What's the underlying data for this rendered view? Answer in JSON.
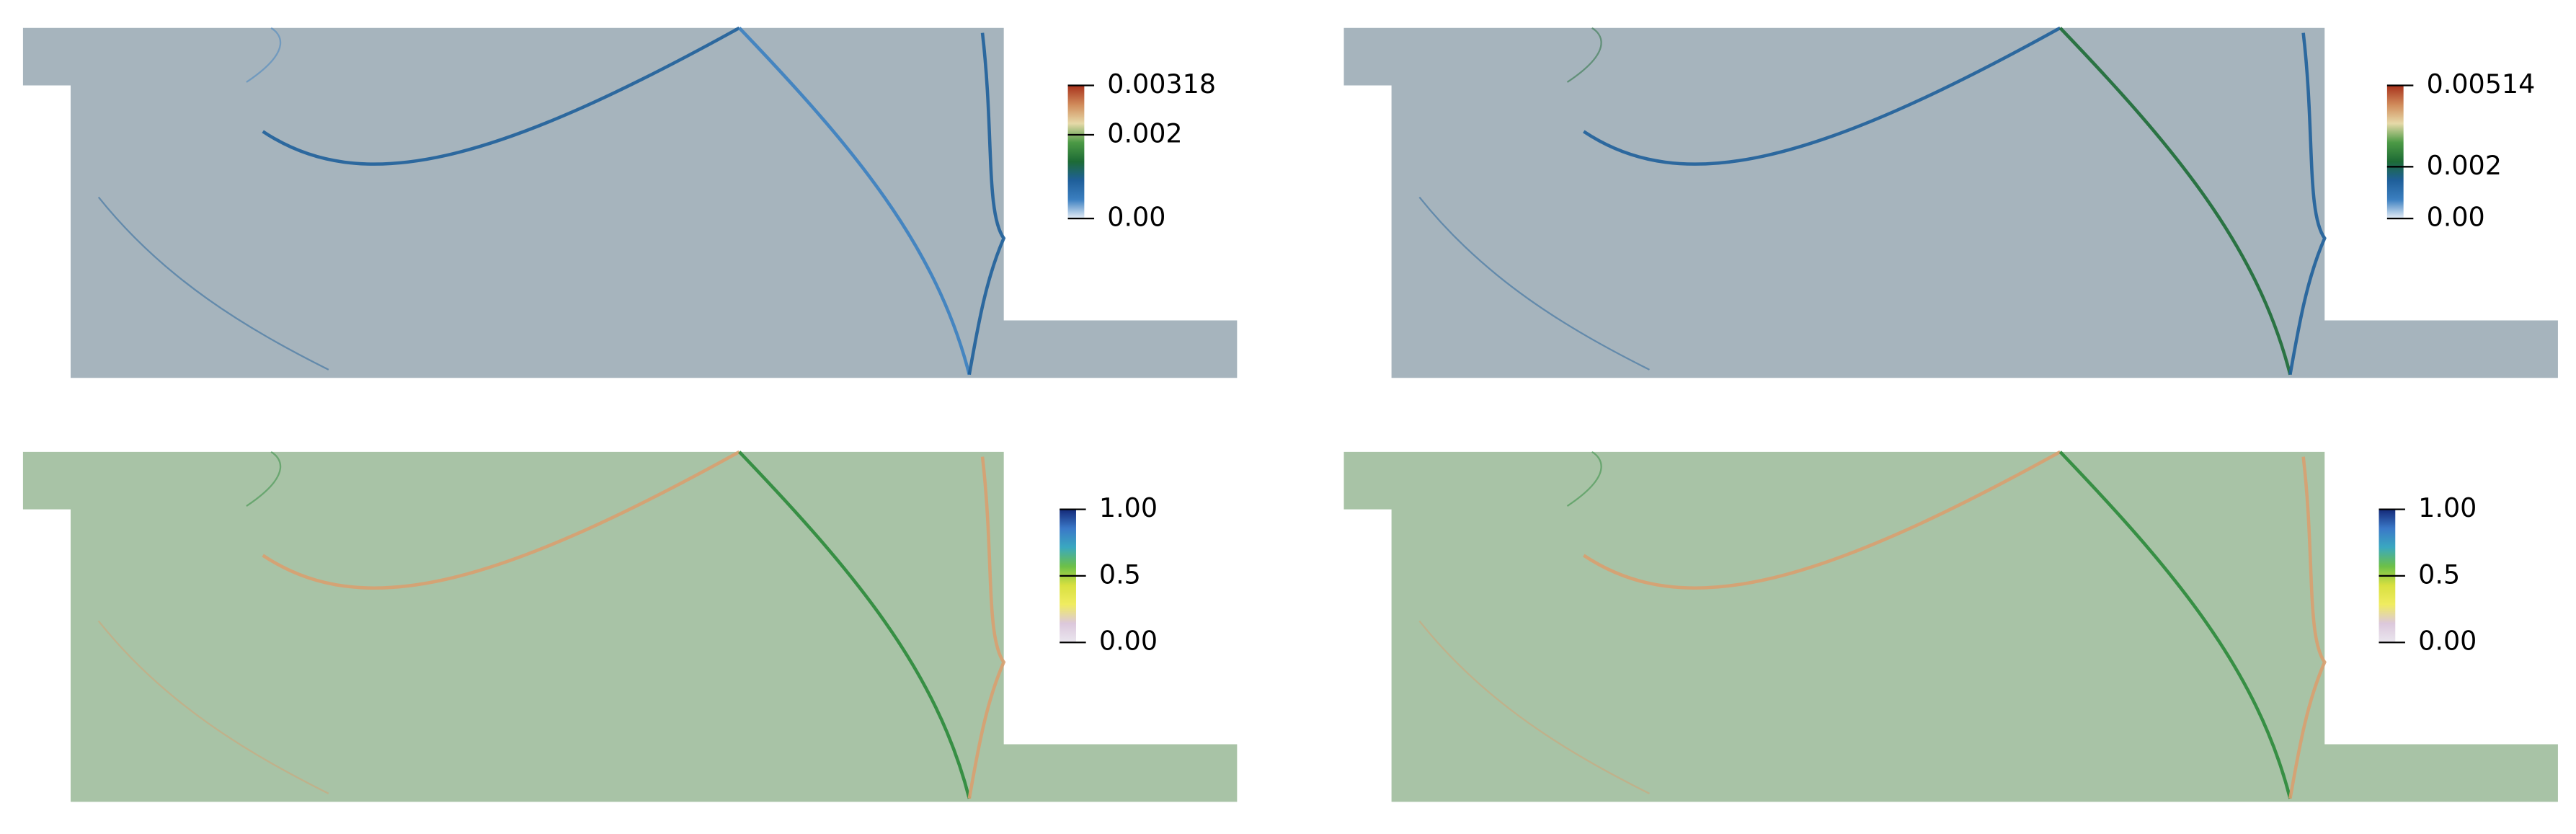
{
  "panels": [
    {
      "field_color": "#a6b4bd",
      "colorbar": {
        "range": [
          0,
          0.00318
        ],
        "ticks": [
          0.00318,
          0.002,
          {
            "value": 0,
            "label": "0.00"
          }
        ],
        "colors": [
          "#e6eef7",
          "#3b7fc0",
          "#1f5f9a",
          "#1d6b35",
          "#4c9a45",
          "#e6d9a8",
          "#d08a5a",
          "#a8321c"
        ]
      }
    },
    {
      "field_color": "#a6b4bd",
      "colorbar": {
        "range": [
          0,
          0.00514
        ],
        "ticks": [
          0.00514,
          0.002,
          {
            "value": 0,
            "label": "0.00"
          }
        ],
        "colors": [
          "#e6eef7",
          "#3b7fc0",
          "#1f5f9a",
          "#1d6b35",
          "#4c9a45",
          "#e6d9a8",
          "#d08a5a",
          "#a8321c"
        ]
      }
    },
    {
      "field_color": "#a8c3a6",
      "colorbar": {
        "range": [
          0,
          1
        ],
        "ticks": [
          {
            "value": 1,
            "label": "1.00"
          },
          0.5,
          {
            "value": 0,
            "label": "0.00"
          }
        ],
        "colors": [
          "#eae6ee",
          "#dcc8dc",
          "#f0ec60",
          "#d8e040",
          "#6cc048",
          "#3aa8c0",
          "#3a78c8",
          "#142a78"
        ]
      }
    },
    {
      "field_color": "#a8c3a6",
      "colorbar": {
        "range": [
          0,
          1
        ],
        "ticks": [
          {
            "value": 1,
            "label": "1.00"
          },
          0.5,
          {
            "value": 0,
            "label": "0.00"
          }
        ],
        "colors": [
          "#eae6ee",
          "#dcc8dc",
          "#f0ec60",
          "#d8e040",
          "#6cc048",
          "#3aa8c0",
          "#3a78c8",
          "#142a78"
        ]
      }
    }
  ]
}
